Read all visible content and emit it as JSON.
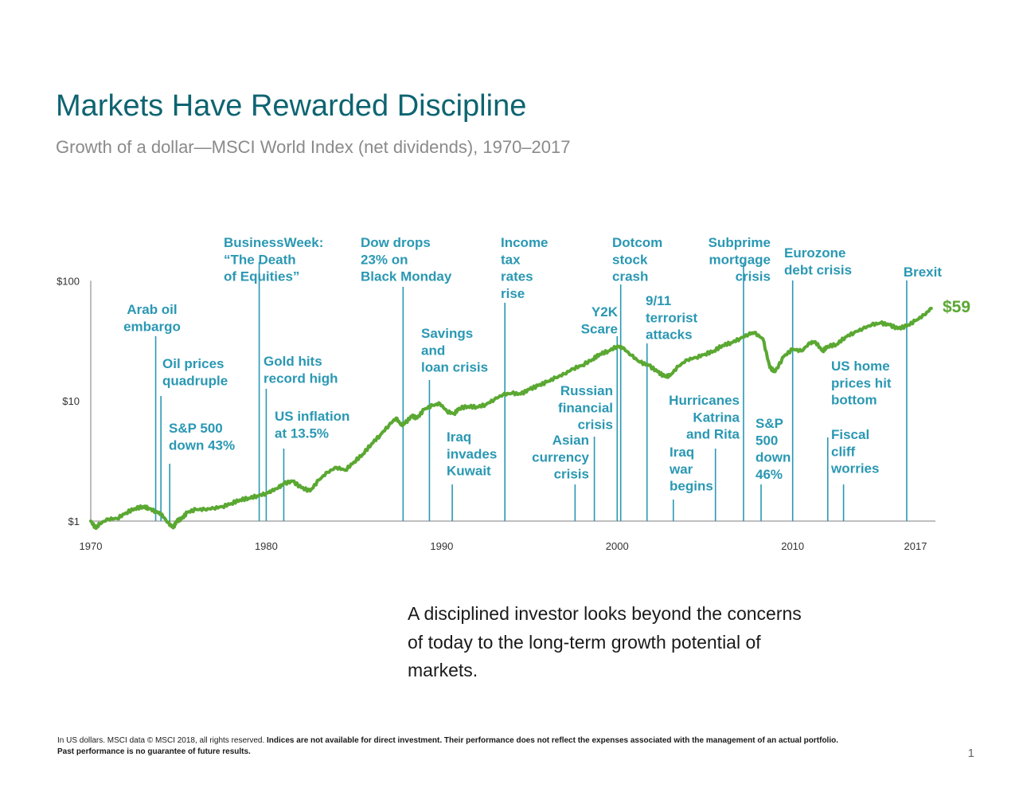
{
  "title": "Markets Have Rewarded Discipline",
  "subtitle": "Growth of a dollar—MSCI World Index (net dividends), 1970–2017",
  "takeaway": "A disciplined investor looks beyond the concerns of today to the long-term growth potential of markets.",
  "footnote": {
    "part1": "In US dollars. MSCI data © MSCI 2018, all rights reserved. ",
    "part2": "Indices are not available for direct investment. Their performance does not reflect the expenses associated with the management of an actual portfolio.",
    "part3": "Past performance is no guarantee of future results."
  },
  "page_number": "1",
  "colors": {
    "title": "#0e6471",
    "annotation": "#2a98b3",
    "line": "#5aa832",
    "axis": "#999999"
  },
  "chart_data": {
    "type": "line",
    "scale": "log",
    "title": "Markets Have Rewarded Discipline",
    "subtitle": "Growth of a dollar—MSCI World Index (net dividends), 1970–2017",
    "xlim": [
      1970,
      2018
    ],
    "ylim": [
      1,
      100
    ],
    "xticks": [
      1970,
      1980,
      1990,
      2000,
      2010,
      2017
    ],
    "xtick_labels": [
      "1970",
      "1980",
      "1990",
      "2000",
      "2010",
      "2017"
    ],
    "yticks": [
      1,
      10,
      100
    ],
    "ytick_labels": [
      "$1",
      "$10",
      "$100"
    ],
    "end_label": "$59",
    "series": [
      {
        "x": [
          1970.0,
          1970.3,
          1970.5,
          1971.0,
          1971.5,
          1972.0,
          1972.5,
          1973.0,
          1973.3,
          1973.7,
          1974.0,
          1974.4,
          1974.7,
          1974.9,
          1975.2,
          1975.5,
          1976.0,
          1976.5,
          1977.0,
          1977.5,
          1978.0,
          1978.5,
          1979.0,
          1979.5,
          1980.0,
          1980.3,
          1980.7,
          1981.0,
          1981.5,
          1982.0,
          1982.5,
          1983.0,
          1983.5,
          1984.0,
          1984.5,
          1985.0,
          1985.5,
          1986.0,
          1986.5,
          1987.0,
          1987.4,
          1987.7,
          1987.9,
          1988.3,
          1988.6,
          1989.0,
          1989.5,
          1989.9,
          1990.3,
          1990.7,
          1991.0,
          1991.5,
          1992.0,
          1992.5,
          1993.0,
          1993.5,
          1994.0,
          1994.5,
          1995.0,
          1995.5,
          1996.0,
          1996.5,
          1997.0,
          1997.5,
          1998.0,
          1998.6,
          1999.0,
          1999.5,
          2000.0,
          2000.3,
          2000.8,
          2001.3,
          2001.8,
          2002.3,
          2002.7,
          2003.0,
          2003.5,
          2004.0,
          2004.5,
          2005.0,
          2005.5,
          2006.0,
          2006.5,
          2007.0,
          2007.5,
          2007.8,
          2008.3,
          2008.7,
          2009.0,
          2009.5,
          2010.0,
          2010.5,
          2011.0,
          2011.3,
          2011.7,
          2012.0,
          2012.5,
          2013.0,
          2013.5,
          2014.0,
          2014.5,
          2015.0,
          2015.5,
          2016.0,
          2016.5,
          2017.0,
          2017.5,
          2017.9
        ],
        "y": [
          1.0,
          0.87,
          0.95,
          1.04,
          1.05,
          1.17,
          1.27,
          1.32,
          1.28,
          1.2,
          1.15,
          0.97,
          0.88,
          1.0,
          1.05,
          1.18,
          1.25,
          1.25,
          1.28,
          1.32,
          1.4,
          1.5,
          1.55,
          1.62,
          1.7,
          1.78,
          1.9,
          2.05,
          2.15,
          1.9,
          1.78,
          2.2,
          2.55,
          2.8,
          2.65,
          3.1,
          3.6,
          4.4,
          5.2,
          6.3,
          7.2,
          6.3,
          6.5,
          7.5,
          7.2,
          8.5,
          9.2,
          9.5,
          8.2,
          7.8,
          8.7,
          9.0,
          8.9,
          9.3,
          10.3,
          11.3,
          11.6,
          11.4,
          12.5,
          13.4,
          14.4,
          15.6,
          16.8,
          18.6,
          19.8,
          22.2,
          24.5,
          26.0,
          28.5,
          27.8,
          24.0,
          21.0,
          19.8,
          17.5,
          16.0,
          16.2,
          19.5,
          22.0,
          23.0,
          24.5,
          26.0,
          29.0,
          30.5,
          33.0,
          36.0,
          37.0,
          33.0,
          19.0,
          17.5,
          23.5,
          27.0,
          26.0,
          30.5,
          31.0,
          26.0,
          28.5,
          29.5,
          34.0,
          37.0,
          40.0,
          43.0,
          44.5,
          43.0,
          40.0,
          42.0,
          46.5,
          52.0,
          59.0
        ]
      }
    ],
    "annotations": [
      {
        "text": [
          "Arab oil",
          "embargo"
        ],
        "year": 1973.7
      },
      {
        "text": [
          "Oil prices",
          "quadruple"
        ],
        "year": 1974.0
      },
      {
        "text": [
          "S&P 500",
          "down 43%"
        ],
        "year": 1974.5
      },
      {
        "text": [
          "BusinessWeek:",
          "“The Death",
          "of Equities”"
        ],
        "year": 1979.6
      },
      {
        "text": [
          "Gold hits",
          "record high"
        ],
        "year": 1980.0
      },
      {
        "text": [
          "US inflation",
          "at 13.5%"
        ],
        "year": 1981.0
      },
      {
        "text": [
          "Dow drops",
          "23% on",
          "Black Monday"
        ],
        "year": 1987.8
      },
      {
        "text": [
          "Savings",
          "and",
          "loan crisis"
        ],
        "year": 1989.3
      },
      {
        "text": [
          "Iraq",
          "invades",
          "Kuwait"
        ],
        "year": 1990.6
      },
      {
        "text": [
          "Income",
          "tax",
          "rates",
          "rise"
        ],
        "year": 1993.6
      },
      {
        "text": [
          "Asian",
          "currency",
          "crisis"
        ],
        "year": 1997.6
      },
      {
        "text": [
          "Russian",
          "financial",
          "crisis"
        ],
        "year": 1998.7
      },
      {
        "text": [
          "Y2K",
          "Scare"
        ],
        "year": 2000.0
      },
      {
        "text": [
          "Dotcom",
          "stock",
          "crash"
        ],
        "year": 2000.2
      },
      {
        "text": [
          "9/11",
          "terrorist",
          "attacks"
        ],
        "year": 2001.7
      },
      {
        "text": [
          "Iraq",
          "war",
          "begins"
        ],
        "year": 2003.2
      },
      {
        "text": [
          "Hurricanes",
          "Katrina",
          "and Rita"
        ],
        "year": 2005.6
      },
      {
        "text": [
          "Subprime",
          "mortgage",
          "crisis"
        ],
        "year": 2007.2
      },
      {
        "text": [
          "S&P",
          "500",
          "down",
          "46%"
        ],
        "year": 2008.2
      },
      {
        "text": [
          "Eurozone",
          "debt crisis"
        ],
        "year": 2010.0
      },
      {
        "text": [
          "US home",
          "prices hit",
          "bottom"
        ],
        "year": 2012.0
      },
      {
        "text": [
          "Fiscal",
          "cliff",
          "worries"
        ],
        "year": 2012.9
      },
      {
        "text": [
          "Brexit"
        ],
        "year": 2016.5
      }
    ]
  }
}
